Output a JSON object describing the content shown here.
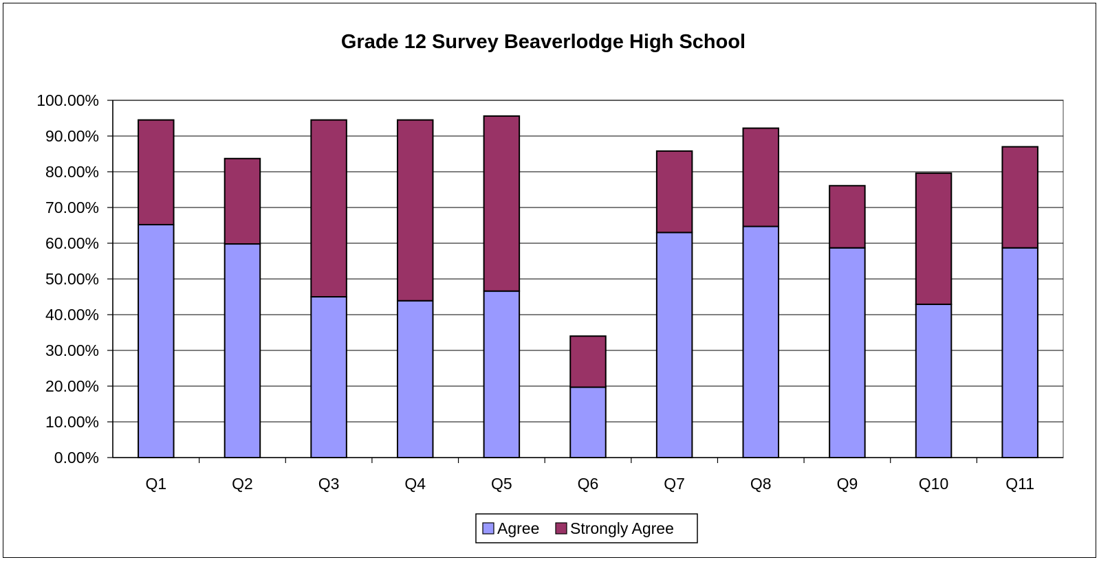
{
  "chart_data": {
    "type": "bar",
    "stacked": true,
    "title": "Grade 12 Survey Beaverlodge High School",
    "xlabel": "",
    "ylabel": "",
    "categories": [
      "Q1",
      "Q2",
      "Q3",
      "Q4",
      "Q5",
      "Q6",
      "Q7",
      "Q8",
      "Q9",
      "Q10",
      "Q11"
    ],
    "series": [
      {
        "name": "Agree",
        "color": "#9999ff",
        "values": [
          65.2,
          59.8,
          45.0,
          43.9,
          46.6,
          19.7,
          63.0,
          64.7,
          58.7,
          42.9,
          58.7
        ]
      },
      {
        "name": "Strongly Agree",
        "color": "#993366",
        "values": [
          29.3,
          23.9,
          49.5,
          50.6,
          49.0,
          14.3,
          22.8,
          27.5,
          17.4,
          36.7,
          28.3
        ]
      }
    ],
    "ylim": [
      0,
      100
    ],
    "yticks": [
      "0.00%",
      "10.00%",
      "20.00%",
      "30.00%",
      "40.00%",
      "50.00%",
      "60.00%",
      "70.00%",
      "80.00%",
      "90.00%",
      "100.00%"
    ],
    "grid": true,
    "legend": "bottom"
  }
}
